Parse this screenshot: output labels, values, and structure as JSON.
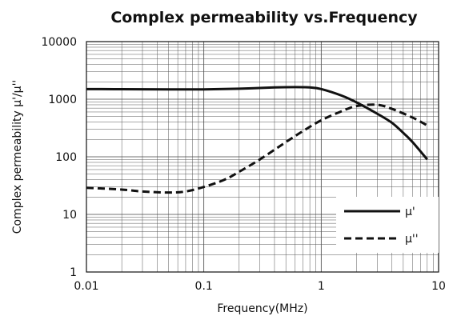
{
  "chart_data": {
    "type": "line",
    "title": "Complex permeability vs.Frequency",
    "xlabel": "Frequency(MHz)",
    "ylabel": "Complex permeability μ'/μ''",
    "x_scale": "log",
    "y_scale": "log",
    "xlim": [
      0.01,
      10
    ],
    "ylim": [
      1,
      10000
    ],
    "x_ticks": [
      0.01,
      0.1,
      1,
      10
    ],
    "x_tick_labels": [
      "0.01",
      "0.1",
      "1",
      "10"
    ],
    "y_ticks": [
      1,
      10,
      100,
      1000,
      10000
    ],
    "y_tick_labels": [
      "1",
      "10",
      "100",
      "1000",
      "10000"
    ],
    "grid": true,
    "legend_position": "bottom-right",
    "series": [
      {
        "name": "μ'",
        "line_style": "solid",
        "color": "#111111",
        "x": [
          0.01,
          0.02,
          0.05,
          0.1,
          0.2,
          0.4,
          0.6,
          0.8,
          1,
          1.5,
          2,
          3,
          4,
          5,
          6,
          8
        ],
        "y": [
          1500,
          1490,
          1480,
          1480,
          1520,
          1600,
          1620,
          1600,
          1500,
          1150,
          880,
          560,
          390,
          260,
          180,
          90
        ]
      },
      {
        "name": "μ''",
        "line_style": "dashed",
        "color": "#111111",
        "x": [
          0.01,
          0.02,
          0.03,
          0.05,
          0.07,
          0.1,
          0.15,
          0.2,
          0.3,
          0.5,
          0.7,
          1,
          1.5,
          2,
          3,
          4,
          6,
          8
        ],
        "y": [
          29,
          27,
          25,
          24,
          25,
          30,
          40,
          55,
          90,
          180,
          280,
          430,
          620,
          760,
          800,
          680,
          480,
          350
        ]
      }
    ]
  }
}
